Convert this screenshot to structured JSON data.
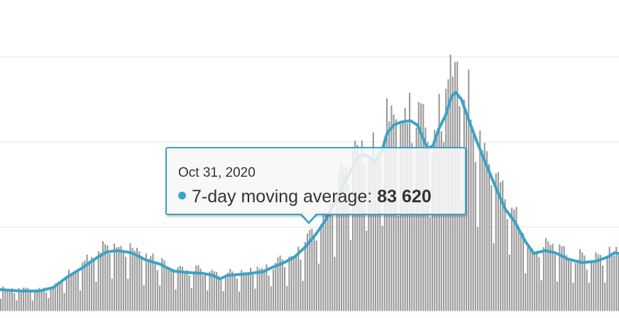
{
  "chart_data": {
    "type": "bar",
    "series": [
      {
        "values": [],
        "color": "#999999"
      },
      {
        "name": "7-day moving average",
        "values": [],
        "color": "#3ba3c7"
      }
    ],
    "grid": true,
    "gridline_count": 4,
    "axis_labels_visible": false
  },
  "tooltip": {
    "date": "Oct 31, 2020",
    "series_label": "7-day moving average:",
    "value": "83 620"
  }
}
